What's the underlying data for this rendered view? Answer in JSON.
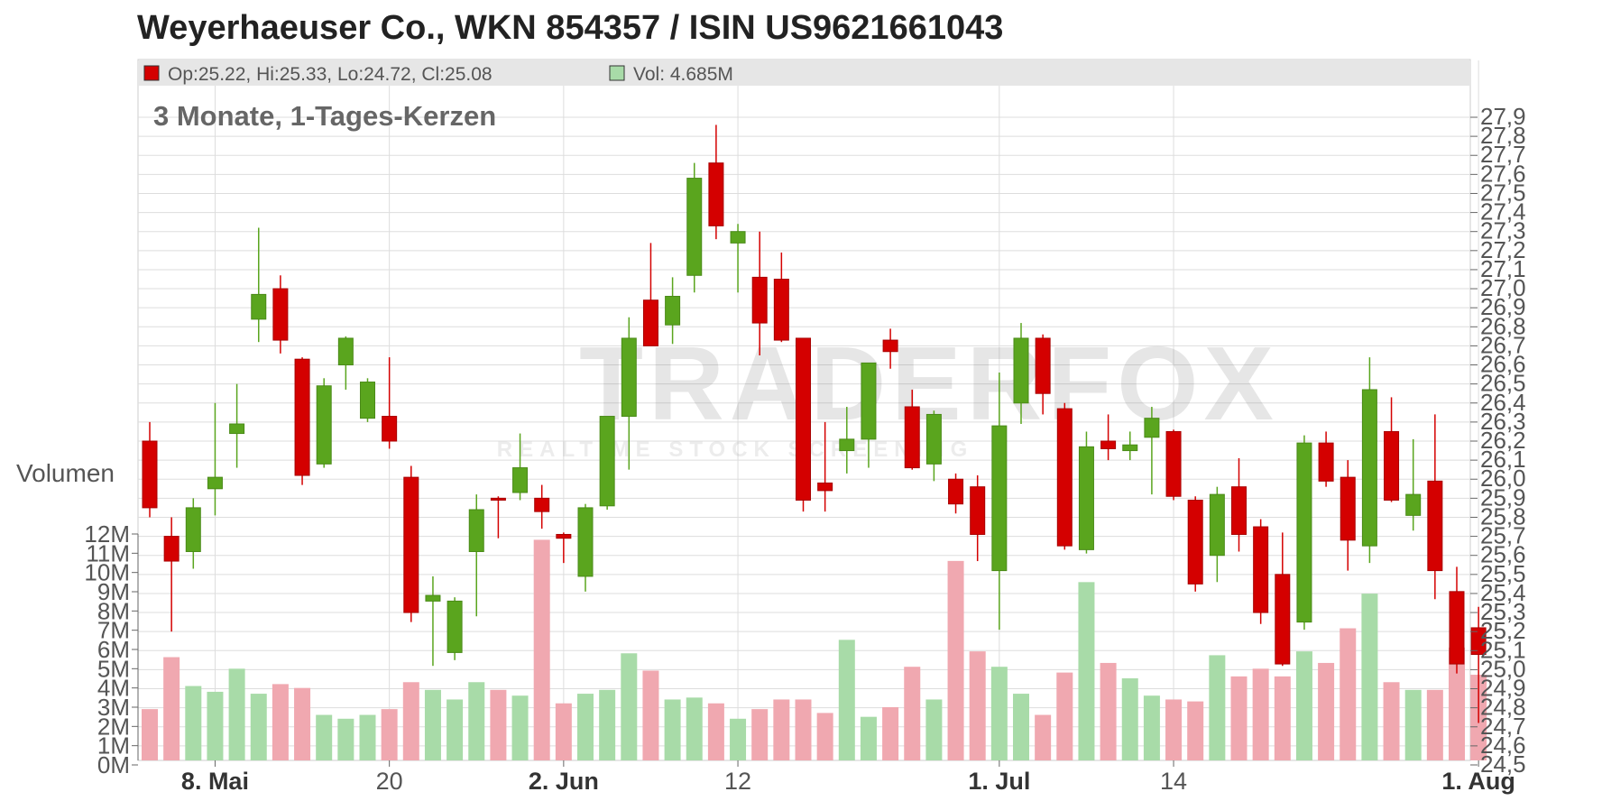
{
  "title": "Weyerhaeuser Co., WKN 854357 / ISIN US9621661043",
  "info": {
    "ohlc": "Op:25.22, Hi:25.33, Lo:24.72, Cl:25.08",
    "vol": "Vol: 4.685M"
  },
  "subtitle": "3 Monate, 1-Tages-Kerzen",
  "volume_label": "Volumen",
  "watermark": {
    "brand": "TRADERFOX",
    "tagline": "REALTIME STOCK SCREENING"
  },
  "colors": {
    "up": "#5aa51e",
    "down": "#d40000",
    "up_volume": "#a8dba8",
    "down_volume": "#f0a8b0",
    "header_bg": "#e6e6e6",
    "grid": "#dddddd"
  },
  "chart_data": {
    "type": "candlestick",
    "title": "Weyerhaeuser Co., WKN 854357 / ISIN US9621661043",
    "subtitle": "3 Monate, 1-Tages-Kerzen",
    "price_axis": {
      "ticks": [
        "24,5",
        "24,6",
        "24,7",
        "24,8",
        "24,9",
        "25,0",
        "25,1",
        "25,2",
        "25,3",
        "25,4",
        "25,5",
        "25,6",
        "25,7",
        "25,8",
        "25,9",
        "26,0",
        "26,1",
        "26,2",
        "26,3",
        "26,4",
        "26,5",
        "26,6",
        "26,7",
        "26,8",
        "26,9",
        "27,0",
        "27,1",
        "27,2",
        "27,3",
        "27,4",
        "27,5",
        "27,6",
        "27,7",
        "27,8",
        "27,9"
      ],
      "min": 24.5,
      "max": 27.9
    },
    "volume_axis": {
      "label": "Volumen",
      "ticks": [
        "0M",
        "1M",
        "2M",
        "3M",
        "4M",
        "5M",
        "6M",
        "7M",
        "8M",
        "9M",
        "10M",
        "11M",
        "12M"
      ],
      "min": 0,
      "max": 12
    },
    "x_labels": [
      {
        "label": "8. Mai",
        "index": 3,
        "bold": true
      },
      {
        "label": "20",
        "index": 11,
        "bold": false
      },
      {
        "label": "2. Jun",
        "index": 19,
        "bold": true
      },
      {
        "label": "12",
        "index": 27,
        "bold": false
      },
      {
        "label": "1. Jul",
        "index": 39,
        "bold": true
      },
      {
        "label": "14",
        "index": 47,
        "bold": false
      },
      {
        "label": "1. Aug",
        "index": 61,
        "bold": true
      }
    ],
    "gridline_indices": [
      3,
      11,
      19,
      27,
      39,
      47,
      61
    ],
    "candles": [
      {
        "o": 26.2,
        "h": 26.3,
        "l": 25.8,
        "c": 25.85,
        "v": 2.9
      },
      {
        "o": 25.7,
        "h": 25.8,
        "l": 25.2,
        "c": 25.57,
        "v": 5.6
      },
      {
        "o": 25.62,
        "h": 25.9,
        "l": 25.53,
        "c": 25.85,
        "v": 4.1
      },
      {
        "o": 25.95,
        "h": 26.4,
        "l": 25.81,
        "c": 26.01,
        "v": 3.8
      },
      {
        "o": 26.24,
        "h": 26.5,
        "l": 26.06,
        "c": 26.29,
        "v": 5.0
      },
      {
        "o": 26.84,
        "h": 27.32,
        "l": 26.72,
        "c": 26.97,
        "v": 3.7
      },
      {
        "o": 27.0,
        "h": 27.07,
        "l": 26.66,
        "c": 26.73,
        "v": 4.2
      },
      {
        "o": 26.63,
        "h": 26.64,
        "l": 25.97,
        "c": 26.02,
        "v": 4.0
      },
      {
        "o": 26.08,
        "h": 26.53,
        "l": 26.06,
        "c": 26.49,
        "v": 2.6
      },
      {
        "o": 26.6,
        "h": 26.75,
        "l": 26.47,
        "c": 26.74,
        "v": 2.4
      },
      {
        "o": 26.32,
        "h": 26.53,
        "l": 26.3,
        "c": 26.51,
        "v": 2.6
      },
      {
        "o": 26.33,
        "h": 26.64,
        "l": 26.16,
        "c": 26.2,
        "v": 2.9
      },
      {
        "o": 26.01,
        "h": 26.07,
        "l": 25.25,
        "c": 25.3,
        "v": 4.3
      },
      {
        "o": 25.36,
        "h": 25.49,
        "l": 25.02,
        "c": 25.39,
        "v": 3.9
      },
      {
        "o": 25.09,
        "h": 25.38,
        "l": 25.05,
        "c": 25.36,
        "v": 3.4
      },
      {
        "o": 25.62,
        "h": 25.92,
        "l": 25.28,
        "c": 25.84,
        "v": 4.3
      },
      {
        "o": 25.9,
        "h": 25.91,
        "l": 25.69,
        "c": 25.89,
        "v": 3.9
      },
      {
        "o": 25.93,
        "h": 26.24,
        "l": 25.89,
        "c": 26.06,
        "v": 3.6
      },
      {
        "o": 25.9,
        "h": 25.97,
        "l": 25.74,
        "c": 25.83,
        "v": 11.7
      },
      {
        "o": 25.71,
        "h": 25.72,
        "l": 25.56,
        "c": 25.69,
        "v": 3.2
      },
      {
        "o": 25.49,
        "h": 25.87,
        "l": 25.41,
        "c": 25.85,
        "v": 3.7
      },
      {
        "o": 25.86,
        "h": 26.33,
        "l": 25.84,
        "c": 26.33,
        "v": 3.9
      },
      {
        "o": 26.33,
        "h": 26.85,
        "l": 26.05,
        "c": 26.74,
        "v": 5.8
      },
      {
        "o": 26.94,
        "h": 27.24,
        "l": 26.7,
        "c": 26.7,
        "v": 4.9
      },
      {
        "o": 26.81,
        "h": 27.06,
        "l": 26.71,
        "c": 26.96,
        "v": 3.4
      },
      {
        "o": 27.07,
        "h": 27.66,
        "l": 26.98,
        "c": 27.58,
        "v": 3.5
      },
      {
        "o": 27.66,
        "h": 27.86,
        "l": 27.26,
        "c": 27.33,
        "v": 3.2
      },
      {
        "o": 27.24,
        "h": 27.34,
        "l": 26.98,
        "c": 27.3,
        "v": 2.4
      },
      {
        "o": 27.06,
        "h": 27.3,
        "l": 26.65,
        "c": 26.82,
        "v": 2.9
      },
      {
        "o": 27.05,
        "h": 27.19,
        "l": 26.72,
        "c": 26.73,
        "v": 3.4
      },
      {
        "o": 26.74,
        "h": 26.74,
        "l": 25.83,
        "c": 25.89,
        "v": 3.4
      },
      {
        "o": 25.98,
        "h": 26.3,
        "l": 25.83,
        "c": 25.94,
        "v": 2.7
      },
      {
        "o": 26.15,
        "h": 26.38,
        "l": 26.03,
        "c": 26.21,
        "v": 6.5
      },
      {
        "o": 26.21,
        "h": 26.61,
        "l": 26.06,
        "c": 26.61,
        "v": 2.5
      },
      {
        "o": 26.73,
        "h": 26.79,
        "l": 26.58,
        "c": 26.67,
        "v": 3.0
      },
      {
        "o": 26.38,
        "h": 26.47,
        "l": 26.05,
        "c": 26.06,
        "v": 5.1
      },
      {
        "o": 26.08,
        "h": 26.36,
        "l": 25.99,
        "c": 26.34,
        "v": 3.4
      },
      {
        "o": 26.0,
        "h": 26.03,
        "l": 25.82,
        "c": 25.87,
        "v": 10.6
      },
      {
        "o": 25.96,
        "h": 26.02,
        "l": 25.57,
        "c": 25.71,
        "v": 5.9
      },
      {
        "o": 25.52,
        "h": 26.56,
        "l": 25.21,
        "c": 26.28,
        "v": 5.1
      },
      {
        "o": 26.4,
        "h": 26.82,
        "l": 26.29,
        "c": 26.74,
        "v": 3.7
      },
      {
        "o": 26.74,
        "h": 26.76,
        "l": 26.34,
        "c": 26.45,
        "v": 2.6
      },
      {
        "o": 26.37,
        "h": 26.4,
        "l": 25.63,
        "c": 25.65,
        "v": 4.8
      },
      {
        "o": 25.63,
        "h": 26.25,
        "l": 25.61,
        "c": 26.17,
        "v": 9.5
      },
      {
        "o": 26.2,
        "h": 26.34,
        "l": 26.1,
        "c": 26.16,
        "v": 5.3
      },
      {
        "o": 26.15,
        "h": 26.25,
        "l": 26.1,
        "c": 26.18,
        "v": 4.5
      },
      {
        "o": 26.22,
        "h": 26.38,
        "l": 25.92,
        "c": 26.32,
        "v": 3.6
      },
      {
        "o": 26.25,
        "h": 26.26,
        "l": 25.89,
        "c": 25.91,
        "v": 3.4
      },
      {
        "o": 25.89,
        "h": 25.91,
        "l": 25.41,
        "c": 25.45,
        "v": 3.3
      },
      {
        "o": 25.6,
        "h": 25.96,
        "l": 25.46,
        "c": 25.92,
        "v": 5.7
      },
      {
        "o": 25.96,
        "h": 26.11,
        "l": 25.62,
        "c": 25.71,
        "v": 4.6
      },
      {
        "o": 25.75,
        "h": 25.79,
        "l": 25.24,
        "c": 25.3,
        "v": 5.0
      },
      {
        "o": 25.5,
        "h": 25.72,
        "l": 25.02,
        "c": 25.03,
        "v": 4.6
      },
      {
        "o": 25.25,
        "h": 26.23,
        "l": 25.21,
        "c": 26.19,
        "v": 5.9
      },
      {
        "o": 26.19,
        "h": 26.25,
        "l": 25.96,
        "c": 25.99,
        "v": 5.3
      },
      {
        "o": 26.01,
        "h": 26.1,
        "l": 25.52,
        "c": 25.68,
        "v": 7.1
      },
      {
        "o": 25.65,
        "h": 26.64,
        "l": 25.56,
        "c": 26.47,
        "v": 8.9
      },
      {
        "o": 26.25,
        "h": 26.43,
        "l": 25.88,
        "c": 25.89,
        "v": 4.3
      },
      {
        "o": 25.81,
        "h": 26.21,
        "l": 25.73,
        "c": 25.92,
        "v": 3.9
      },
      {
        "o": 25.99,
        "h": 26.34,
        "l": 25.37,
        "c": 25.52,
        "v": 3.9
      },
      {
        "o": 25.41,
        "h": 25.54,
        "l": 24.98,
        "c": 25.03,
        "v": 6.1
      },
      {
        "o": 25.22,
        "h": 25.33,
        "l": 24.72,
        "c": 25.08,
        "v": 4.685
      }
    ]
  }
}
